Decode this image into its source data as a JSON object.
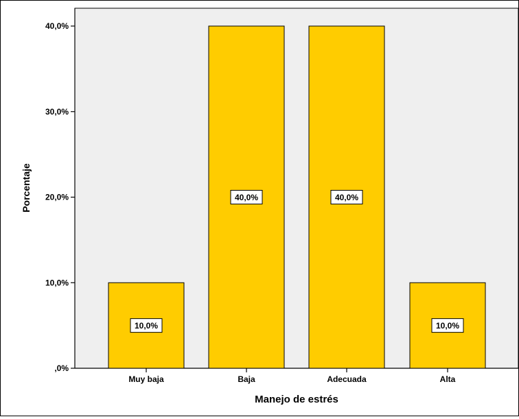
{
  "chart_data": {
    "type": "bar",
    "categories": [
      "Muy baja",
      "Baja",
      "Adecuada",
      "Alta"
    ],
    "values": [
      10.0,
      40.0,
      40.0,
      10.0
    ],
    "data_labels": [
      "10,0%",
      "40,0%",
      "40,0%",
      "10,0%"
    ],
    "ylim": [
      0,
      42
    ],
    "yticks": [
      0,
      10,
      20,
      30,
      40
    ],
    "ytick_labels": [
      ",0%",
      "10,0%",
      "20,0%",
      "30,0%",
      "40,0%"
    ],
    "xlabel": "Manejo de estrés",
    "ylabel": "Porcentaje",
    "grid": false,
    "legend": "none",
    "colors": {
      "bar_fill": "#FFCC00",
      "bar_stroke": "#000000",
      "plot_background": "#EFEFEF",
      "axis": "#000000"
    }
  }
}
